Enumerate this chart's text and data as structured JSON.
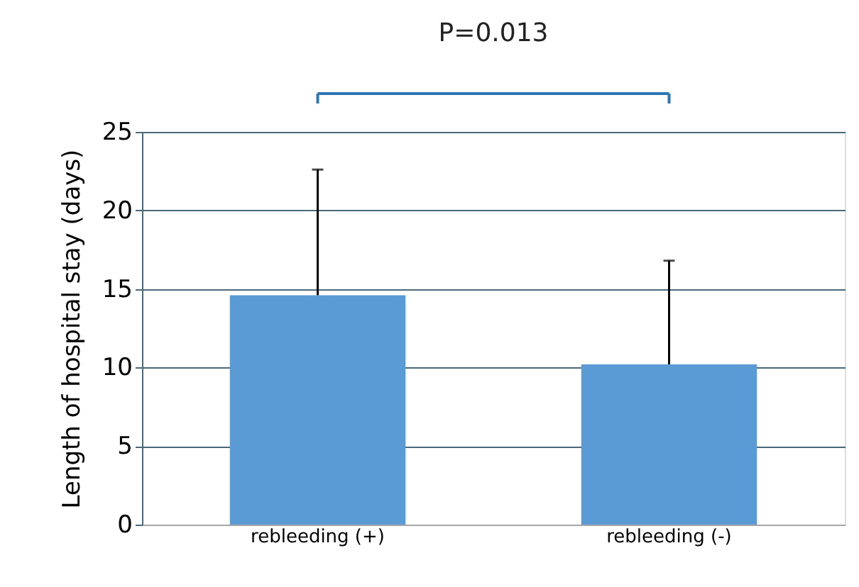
{
  "chart_data": {
    "type": "bar",
    "ylabel": "Length of hospital stay (days)",
    "categories": [
      "rebleeding (+)",
      "rebleeding (-)"
    ],
    "values": [
      14.6,
      10.2
    ],
    "errors": [
      8.0,
      6.6
    ],
    "color": "#5b9bd5",
    "ylim": [
      0,
      25
    ],
    "yticks": [
      0,
      5,
      10,
      15,
      20,
      25
    ],
    "grid": "y",
    "annotations": [
      "P=0.013"
    ]
  }
}
